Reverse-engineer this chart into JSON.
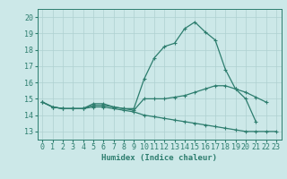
{
  "xlabel": "Humidex (Indice chaleur)",
  "x": [
    0,
    1,
    2,
    3,
    4,
    5,
    6,
    7,
    8,
    9,
    10,
    11,
    12,
    13,
    14,
    15,
    16,
    17,
    18,
    19,
    20,
    21,
    22,
    23
  ],
  "line_max": [
    14.8,
    14.5,
    14.4,
    14.4,
    14.4,
    14.7,
    14.7,
    14.5,
    14.4,
    14.4,
    16.2,
    17.5,
    18.2,
    18.4,
    19.3,
    19.7,
    19.1,
    18.6,
    16.8,
    15.6,
    15.0,
    13.6,
    null,
    null
  ],
  "line_mean": [
    14.8,
    14.5,
    14.4,
    14.4,
    14.4,
    14.6,
    14.6,
    14.5,
    14.4,
    14.3,
    15.0,
    15.0,
    15.0,
    15.1,
    15.2,
    15.4,
    15.6,
    15.8,
    15.8,
    15.6,
    15.4,
    15.1,
    14.8,
    null
  ],
  "line_min": [
    14.8,
    14.5,
    14.4,
    14.4,
    14.4,
    14.5,
    14.5,
    14.4,
    14.3,
    14.2,
    14.0,
    13.9,
    13.8,
    13.7,
    13.6,
    13.5,
    13.4,
    13.3,
    13.2,
    13.1,
    13.0,
    13.0,
    13.0,
    13.0
  ],
  "color": "#2d7d6e",
  "bg_color": "#cce8e8",
  "grid_color": "#aed0d0",
  "ylim": [
    12.5,
    20.5
  ],
  "yticks": [
    13,
    14,
    15,
    16,
    17,
    18,
    19,
    20
  ],
  "xlim": [
    -0.5,
    23.5
  ],
  "xticks": [
    0,
    1,
    2,
    3,
    4,
    5,
    6,
    7,
    8,
    9,
    10,
    11,
    12,
    13,
    14,
    15,
    16,
    17,
    18,
    19,
    20,
    21,
    22,
    23
  ],
  "marker": "+",
  "markersize": 3.5,
  "linewidth": 0.9,
  "tick_fontsize": 6,
  "xlabel_fontsize": 6.5
}
